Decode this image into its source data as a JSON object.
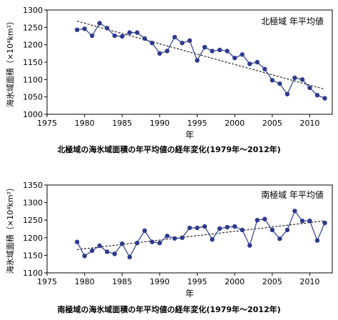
{
  "chart_data": [
    {
      "type": "line",
      "title": "北極域の海氷域面積の年平均値の経年変化(1979年〜2012年)",
      "legend_label": "北極域  年平均値",
      "xlabel": "年",
      "ylabel": "海氷域面積（×10⁴km²）",
      "xlim": [
        1975,
        2013
      ],
      "ylim": [
        1000,
        1300
      ],
      "xticks": [
        1975,
        1980,
        1985,
        1990,
        1995,
        2000,
        2005,
        2010
      ],
      "yticks": [
        1000,
        1050,
        1100,
        1150,
        1200,
        1250,
        1300
      ],
      "trend": [
        [
          1979,
          1268
        ],
        [
          2012,
          1072
        ]
      ],
      "series": [
        {
          "x": [
            1979,
            1980,
            1981,
            1982,
            1983,
            1984,
            1985,
            1986,
            1987,
            1988,
            1989,
            1990,
            1991,
            1992,
            1993,
            1994,
            1995,
            1996,
            1997,
            1998,
            1999,
            2000,
            2001,
            2002,
            2003,
            2004,
            2005,
            2006,
            2007,
            2008,
            2009,
            2010,
            2011,
            2012
          ],
          "y": [
            1243,
            1246,
            1226,
            1262,
            1248,
            1226,
            1224,
            1235,
            1235,
            1218,
            1205,
            1175,
            1182,
            1222,
            1205,
            1212,
            1155,
            1193,
            1182,
            1185,
            1182,
            1162,
            1172,
            1145,
            1150,
            1130,
            1098,
            1088,
            1058,
            1105,
            1100,
            1076,
            1055,
            1046
          ]
        }
      ]
    },
    {
      "type": "line",
      "title": "南極域の海氷域面積の年平均値の経年変化(1979年〜2012年)",
      "legend_label": "南極域  年平均値",
      "xlabel": "年",
      "ylabel": "海氷域面積（×10⁴km²）",
      "xlim": [
        1975,
        2013
      ],
      "ylim": [
        1100,
        1350
      ],
      "xticks": [
        1975,
        1980,
        1985,
        1990,
        1995,
        2000,
        2005,
        2010
      ],
      "yticks": [
        1100,
        1150,
        1200,
        1250,
        1300,
        1350
      ],
      "trend": [
        [
          1979,
          1166
        ],
        [
          2012,
          1248
        ]
      ],
      "series": [
        {
          "x": [
            1979,
            1980,
            1981,
            1982,
            1983,
            1984,
            1985,
            1986,
            1987,
            1988,
            1989,
            1990,
            1991,
            1992,
            1993,
            1994,
            1995,
            1996,
            1997,
            1998,
            1999,
            2000,
            2001,
            2002,
            2003,
            2004,
            2005,
            2006,
            2007,
            2008,
            2009,
            2010,
            2011,
            2012
          ],
          "y": [
            1188,
            1148,
            1163,
            1177,
            1160,
            1154,
            1183,
            1145,
            1185,
            1220,
            1188,
            1185,
            1205,
            1198,
            1200,
            1228,
            1228,
            1232,
            1195,
            1226,
            1230,
            1232,
            1222,
            1178,
            1250,
            1253,
            1222,
            1197,
            1222,
            1276,
            1248,
            1248,
            1192,
            1242
          ]
        }
      ]
    }
  ],
  "colors": {
    "series": "#2e3a8c",
    "axis": "#000000",
    "trend": "#000000"
  }
}
